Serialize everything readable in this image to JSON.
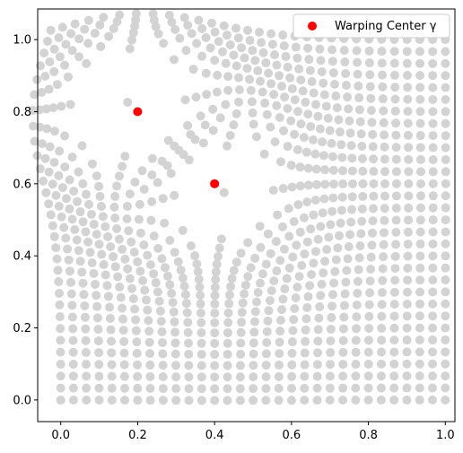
{
  "chart_data": {
    "type": "scatter",
    "title": "",
    "xlabel": "",
    "ylabel": "",
    "xlim": [
      -0.06,
      1.025
    ],
    "ylim": [
      -0.06,
      1.085
    ],
    "xticks": [
      0.0,
      0.2,
      0.4,
      0.6,
      0.8,
      1.0
    ],
    "yticks": [
      0.0,
      0.2,
      0.4,
      0.6,
      0.8,
      1.0
    ],
    "xtick_labels": [
      "0.0",
      "0.2",
      "0.4",
      "0.6",
      "0.8",
      "1.0"
    ],
    "ytick_labels": [
      "0.0",
      "0.2",
      "0.4",
      "0.6",
      "0.8",
      "1.0"
    ],
    "grid": false,
    "legend_position": "top-right",
    "warped_grid": {
      "description_source": "uniform 31x31 grid over [0,1]x[0,1] displaced by radial warping around the warping centers",
      "n": 31,
      "range": [
        0,
        1
      ],
      "color": "#d3d3d3",
      "centers": [
        [
          0.2,
          0.8
        ],
        [
          0.4,
          0.6
        ]
      ],
      "warp_strength": [
        0.12,
        0.1
      ],
      "warp_sigma": [
        0.18,
        0.2
      ]
    },
    "series": [
      {
        "name": "Warping Center γ",
        "color": "#ff0000",
        "points": [
          {
            "x": 0.2,
            "y": 0.8
          },
          {
            "x": 0.4,
            "y": 0.6
          }
        ]
      }
    ]
  }
}
